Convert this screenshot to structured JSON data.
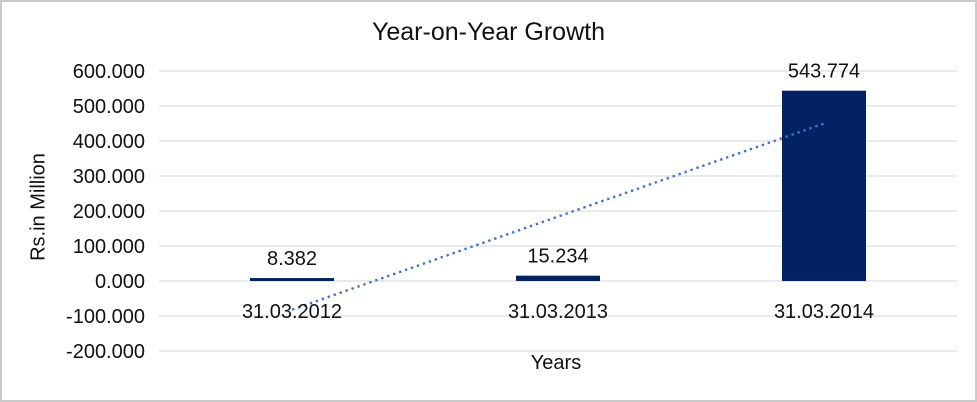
{
  "chart_data": {
    "type": "bar",
    "title": "Year-on-Year Growth",
    "xlabel": "Years",
    "ylabel": "Rs.in Million",
    "categories": [
      "31.03.2012",
      "31.03.2013",
      "31.03.2014"
    ],
    "values": [
      8.382,
      15.234,
      543.774
    ],
    "data_labels": [
      "8.382",
      "15.234",
      "543.774"
    ],
    "y_ticks": [
      {
        "value": 600,
        "label": "600.000"
      },
      {
        "value": 500,
        "label": "500.000"
      },
      {
        "value": 400,
        "label": "400.000"
      },
      {
        "value": 300,
        "label": "300.000"
      },
      {
        "value": 200,
        "label": "200.000"
      },
      {
        "value": 100,
        "label": "100.000"
      },
      {
        "value": 0,
        "label": "0.000"
      },
      {
        "value": -100,
        "label": "-100.000"
      },
      {
        "value": -200,
        "label": "-200.000"
      }
    ],
    "ylim": [
      -200,
      600
    ],
    "grid": true,
    "legend": false,
    "trendline": {
      "type": "linear",
      "style": "dotted",
      "start_value": -82,
      "end_value": 450
    },
    "colors": {
      "bar": "#032264",
      "trendline": "#4472C4",
      "gridline": "#d6d6d6",
      "text": "#111111",
      "frame_border": "#cacaca",
      "background": "#ffffff"
    }
  }
}
